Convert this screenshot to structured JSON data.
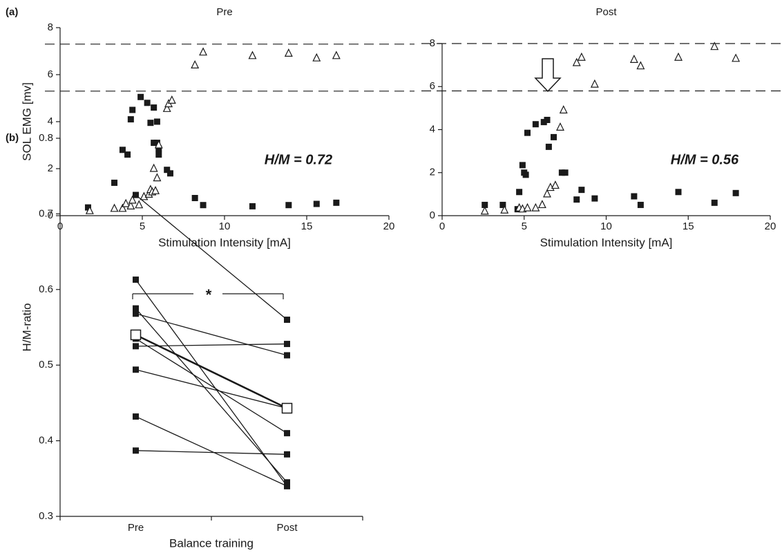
{
  "chart_data": [
    {
      "type": "scatter",
      "panel_label": "(a)",
      "title": "Pre",
      "xlabel": "Stimulation Intensity [mA]",
      "ylabel": "SOL EMG [mv]",
      "xlim": [
        0,
        20
      ],
      "ylim": [
        0,
        8
      ],
      "xticks": [
        0,
        5,
        10,
        15,
        20
      ],
      "yticks": [
        0,
        2,
        4,
        6,
        8
      ],
      "reference_lines": [
        7.3,
        5.3
      ],
      "annotation": "H/M = 0.72",
      "series": [
        {
          "marker": "square",
          "color": "#1a1a1a",
          "x": [
            1.7,
            3.3,
            3.8,
            4.1,
            4.3,
            4.4,
            4.9,
            5.3,
            5.5,
            5.7,
            5.7,
            5.9,
            5.9,
            6.0,
            6.0,
            6.5,
            6.7,
            8.2,
            8.7,
            11.7,
            13.9,
            15.6,
            16.8
          ],
          "values": [
            0.35,
            1.4,
            2.8,
            2.6,
            4.1,
            4.5,
            5.05,
            4.8,
            3.95,
            4.6,
            3.1,
            3.1,
            4.0,
            2.6,
            2.85,
            1.95,
            1.8,
            0.75,
            0.45,
            0.4,
            0.45,
            0.5,
            0.55
          ]
        },
        {
          "marker": "triangle",
          "color": "#1a1a1a",
          "x": [
            1.8,
            3.3,
            3.8,
            4.0,
            4.3,
            4.4,
            4.8,
            5.1,
            5.4,
            5.5,
            5.6,
            5.7,
            5.8,
            5.9,
            6.0,
            6.5,
            6.6,
            6.8,
            8.2,
            8.7,
            11.7,
            13.9,
            15.6,
            16.8
          ],
          "values": [
            0.2,
            0.3,
            0.3,
            0.5,
            0.4,
            0.65,
            0.45,
            0.8,
            0.9,
            1.1,
            1.0,
            2.0,
            1.05,
            1.6,
            3.0,
            4.55,
            4.75,
            4.9,
            6.4,
            6.95,
            6.8,
            6.9,
            6.7,
            6.8
          ]
        }
      ]
    },
    {
      "type": "scatter",
      "title": "Post",
      "xlabel": "Stimulation Intensity [mA]",
      "xlim": [
        0,
        20
      ],
      "ylim": [
        0,
        8
      ],
      "xticks": [
        0,
        5,
        10,
        15,
        20
      ],
      "yticks": [
        0,
        2,
        4,
        6,
        8
      ],
      "reference_lines": [
        8.0,
        5.8
      ],
      "annotation": "H/M = 0.56",
      "series": [
        {
          "marker": "square",
          "color": "#1a1a1a",
          "x": [
            2.6,
            3.7,
            4.6,
            4.7,
            4.9,
            5.0,
            5.1,
            5.2,
            5.7,
            6.2,
            6.4,
            6.5,
            6.8,
            7.3,
            7.5,
            8.2,
            8.5,
            9.3,
            11.7,
            12.1,
            14.4,
            16.6,
            17.9
          ],
          "values": [
            0.5,
            0.5,
            0.3,
            1.1,
            2.35,
            2.0,
            1.9,
            3.85,
            4.25,
            4.35,
            4.45,
            3.2,
            3.65,
            2.0,
            2.0,
            0.75,
            1.2,
            0.8,
            0.9,
            0.5,
            1.1,
            0.6,
            1.05
          ]
        },
        {
          "marker": "triangle",
          "color": "#1a1a1a",
          "x": [
            2.6,
            3.8,
            4.7,
            4.9,
            5.2,
            5.7,
            6.1,
            6.4,
            6.6,
            6.9,
            7.2,
            7.4,
            8.2,
            8.5,
            9.3,
            11.7,
            12.1,
            14.4,
            16.6,
            17.9
          ],
          "values": [
            0.2,
            0.25,
            0.35,
            0.3,
            0.35,
            0.35,
            0.5,
            1.0,
            1.3,
            1.4,
            4.1,
            4.9,
            7.1,
            7.35,
            6.1,
            7.25,
            6.95,
            7.35,
            7.85,
            7.3
          ]
        }
      ]
    },
    {
      "type": "line",
      "panel_label": "(b)",
      "xlabel": "Balance training",
      "ylabel": "H/M-ratio",
      "categories": [
        "Pre",
        "Post"
      ],
      "ylim": [
        0.3,
        0.8
      ],
      "yticks": [
        0.3,
        0.4,
        0.5,
        0.6,
        0.7,
        0.8
      ],
      "annotation": "*",
      "series": [
        {
          "marker": "square",
          "color": "#1a1a1a",
          "values": [
            0.725,
            0.56
          ]
        },
        {
          "marker": "square",
          "color": "#1a1a1a",
          "values": [
            0.568,
            0.513
          ]
        },
        {
          "marker": "square",
          "color": "#1a1a1a",
          "values": [
            0.525,
            0.528
          ]
        },
        {
          "marker": "square",
          "color": "#1a1a1a",
          "values": [
            0.613,
            0.34
          ]
        },
        {
          "marker": "square",
          "color": "#1a1a1a",
          "values": [
            0.575,
            0.345
          ]
        },
        {
          "marker": "square",
          "color": "#1a1a1a",
          "values": [
            0.535,
            0.41
          ]
        },
        {
          "marker": "square",
          "color": "#1a1a1a",
          "values": [
            0.494,
            0.443
          ]
        },
        {
          "marker": "square",
          "color": "#1a1a1a",
          "values": [
            0.432,
            0.34
          ]
        },
        {
          "marker": "square",
          "color": "#1a1a1a",
          "values": [
            0.387,
            0.382
          ]
        },
        {
          "marker": "open-square",
          "color": "#1a1a1a",
          "line_width": 2.5,
          "values": [
            0.54,
            0.443
          ]
        }
      ]
    }
  ]
}
